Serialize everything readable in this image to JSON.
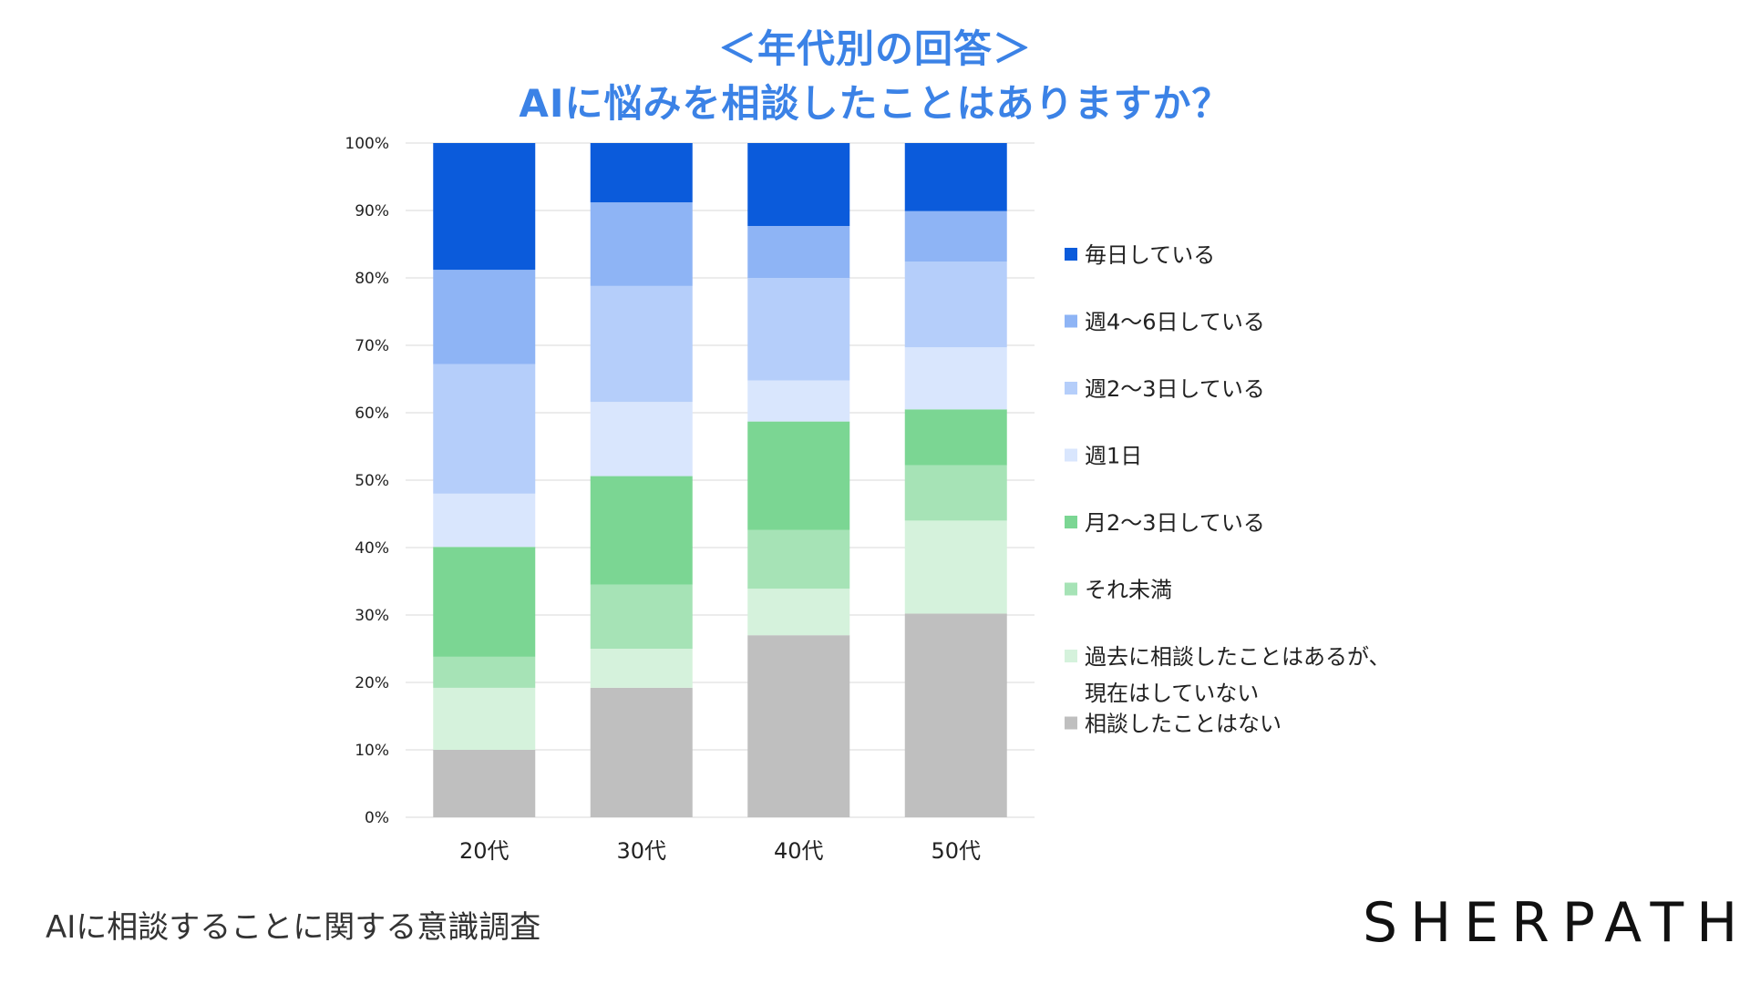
{
  "chart_data": {
    "type": "bar",
    "stacked": true,
    "title": "＜年代別の回答＞",
    "subtitle": "AIに悩みを相談したことはありますか？",
    "categories": [
      "20代",
      "30代",
      "40代",
      "50代"
    ],
    "ylim": [
      0,
      100
    ],
    "yticks": [
      "0%",
      "10%",
      "20%",
      "30%",
      "40%",
      "50%",
      "60%",
      "70%",
      "80%",
      "90%",
      "100%"
    ],
    "grid": true,
    "legend_position": "right",
    "series": [
      {
        "name": "相談したことはない",
        "color": "#bfbfbf",
        "values": [
          10,
          19.2,
          27,
          30.2
        ]
      },
      {
        "name": "過去に相談したことはあるが、現在はしていない",
        "color": "#d5f2dc",
        "values": [
          9.2,
          5.8,
          6.9,
          13.8
        ]
      },
      {
        "name": "それ未満",
        "color": "#a6e3b6",
        "values": [
          4.6,
          9.5,
          8.7,
          8.2
        ]
      },
      {
        "name": "月2〜3日している",
        "color": "#7bd693",
        "values": [
          16.3,
          16.1,
          16.1,
          8.3
        ]
      },
      {
        "name": "週1日",
        "color": "#d9e6fd",
        "values": [
          7.9,
          11,
          6.1,
          9.2
        ]
      },
      {
        "name": "週2〜3日している",
        "color": "#b5cefa",
        "values": [
          19.2,
          17.2,
          15.2,
          12.7
        ]
      },
      {
        "name": "週4〜6日している",
        "color": "#8eb4f5",
        "values": [
          14,
          12.4,
          7.7,
          7.5
        ]
      },
      {
        "name": "毎日している",
        "color": "#0b5bdb",
        "values": [
          18.8,
          8.8,
          12.3,
          10.1
        ]
      }
    ],
    "legend_order": [
      {
        "name": "毎日している",
        "color": "#0b5bdb"
      },
      {
        "name": "週4〜6日している",
        "color": "#8eb4f5"
      },
      {
        "name": "週2〜3日している",
        "color": "#b5cefa"
      },
      {
        "name": "週1日",
        "color": "#d9e6fd"
      },
      {
        "name": "月2〜3日している",
        "color": "#7bd693"
      },
      {
        "name": "それ未満",
        "color": "#a6e3b6"
      },
      {
        "name": [
          "過去に相談したことはあるが、",
          "現在はしていない"
        ],
        "color": "#d5f2dc"
      },
      {
        "name": "相談したことはない",
        "color": "#bfbfbf"
      }
    ]
  },
  "footer": {
    "text": "AIに相談することに関する意識調査"
  },
  "brand": {
    "logo": "SHERPATH"
  }
}
